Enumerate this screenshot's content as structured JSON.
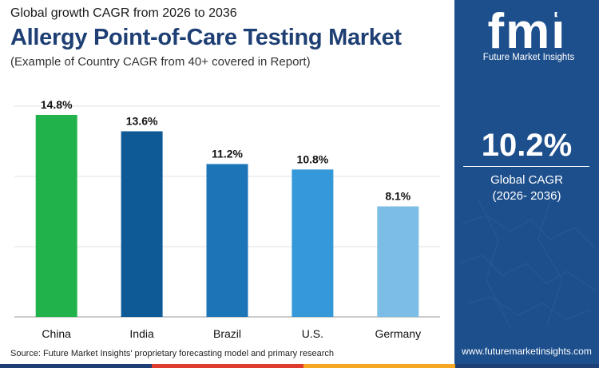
{
  "header": {
    "subtitle": "Global growth CAGR from 2026 to 2036",
    "title": "Allergy Point-of-Care Testing Market",
    "note": "(Example of Country CAGR from 40+ covered in Report)"
  },
  "chart_data": {
    "type": "bar",
    "categories": [
      "China",
      "India",
      "Brazil",
      "U.S.",
      "Germany"
    ],
    "values": [
      14.8,
      13.6,
      11.2,
      10.8,
      8.1
    ],
    "data_labels": [
      "14.8%",
      "13.6%",
      "11.2%",
      "10.8%",
      "8.1%"
    ],
    "bar_colors": [
      "#22b24c",
      "#0d5a96",
      "#1b75b7",
      "#3598d8",
      "#7cbde6"
    ],
    "ylim": [
      0,
      15.5
    ],
    "grid": true,
    "gridline_values": [
      0,
      5.15,
      10.3,
      15.45
    ]
  },
  "source": "Source: Future Market Insights' proprietary forecasting model and primary research",
  "sidebar": {
    "logo_text": "fmi",
    "logo_caption": "Future Market Insights",
    "kpi_value": "10.2%",
    "kpi_label_line1": "Global CAGR",
    "kpi_label_line2": "(2026- 2036)",
    "website": "www.futuremarketinsights.com",
    "background_color": "#1d4f8c"
  }
}
